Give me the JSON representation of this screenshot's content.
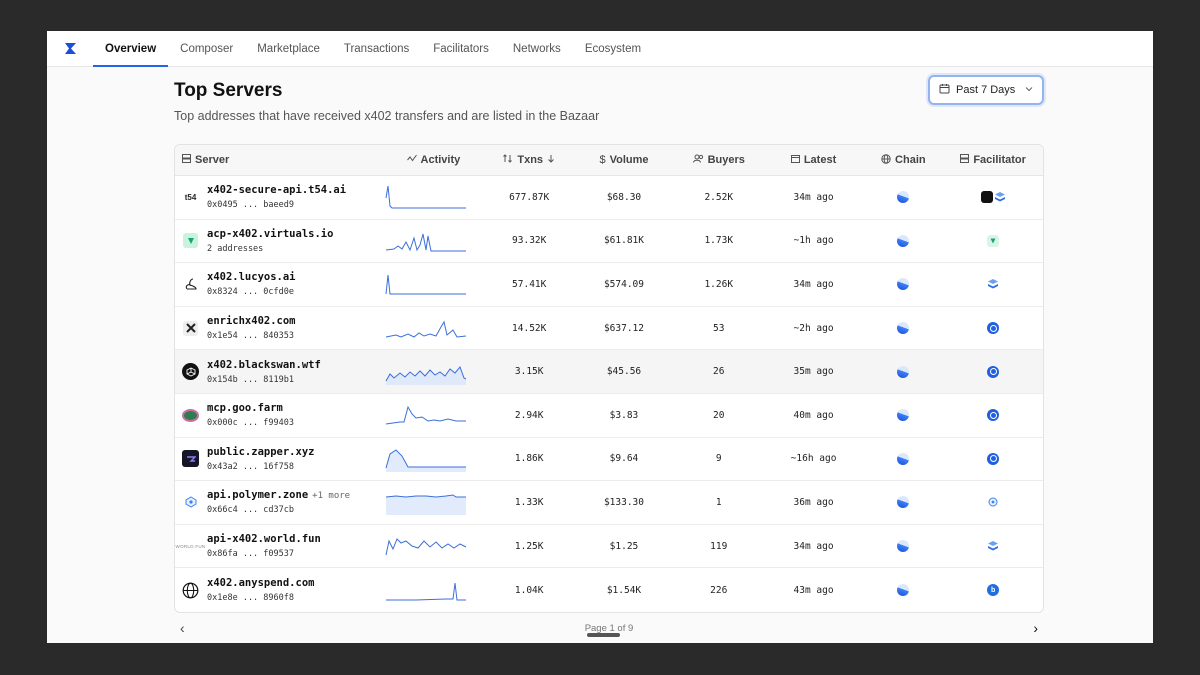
{
  "nav": {
    "tabs": [
      {
        "label": "Overview",
        "active": true
      },
      {
        "label": "Composer"
      },
      {
        "label": "Marketplace"
      },
      {
        "label": "Transactions"
      },
      {
        "label": "Facilitators"
      },
      {
        "label": "Networks"
      },
      {
        "label": "Ecosystem"
      }
    ]
  },
  "header": {
    "title": "Top Servers",
    "subtitle": "Top addresses that have received x402 transfers and are listed in the Bazaar",
    "range_label": "Past 7 Days"
  },
  "table": {
    "columns": [
      "Server",
      "Activity",
      "Txns",
      "Volume",
      "Buyers",
      "Latest",
      "Chain",
      "Facilitator"
    ],
    "rows": [
      {
        "name": "x402-secure-api.t54.ai",
        "addr": "0x0495 ... baeed9",
        "txns": "677.87K",
        "volume": "$68.30",
        "buyers": "2.52K",
        "latest": "34m ago",
        "icon": "t54-logo-icon"
      },
      {
        "name": "acp-x402.virtuals.io",
        "addr": "2 addresses",
        "txns": "93.32K",
        "volume": "$61.81K",
        "buyers": "1.73K",
        "latest": "~1h ago",
        "icon": "virtuals-logo-icon"
      },
      {
        "name": "x402.lucyos.ai",
        "addr": "0x8324 ... 0cfd0e",
        "txns": "57.41K",
        "volume": "$574.09",
        "buyers": "1.26K",
        "latest": "34m ago",
        "icon": "lucyos-logo-icon"
      },
      {
        "name": "enrichx402.com",
        "addr": "0x1e54 ... 840353",
        "txns": "14.52K",
        "volume": "$637.12",
        "buyers": "53",
        "latest": "~2h ago",
        "icon": "enrichx-logo-icon"
      },
      {
        "name": "x402.blackswan.wtf",
        "addr": "0x154b ... 8119b1",
        "txns": "3.15K",
        "volume": "$45.56",
        "buyers": "26",
        "latest": "35m ago",
        "icon": "blackswan-logo-icon"
      },
      {
        "name": "mcp.goo.farm",
        "addr": "0x000c ... f99403",
        "txns": "2.94K",
        "volume": "$3.83",
        "buyers": "20",
        "latest": "40m ago",
        "icon": "goo-farm-logo-icon"
      },
      {
        "name": "public.zapper.xyz",
        "addr": "0x43a2 ... 16f758",
        "txns": "1.86K",
        "volume": "$9.64",
        "buyers": "9",
        "latest": "~16h ago",
        "icon": "zapper-logo-icon"
      },
      {
        "name": "api.polymer.zone",
        "more": "+1 more",
        "addr": "0x66c4 ... cd37cb",
        "txns": "1.33K",
        "volume": "$133.30",
        "buyers": "1",
        "latest": "36m ago",
        "icon": "polymer-logo-icon"
      },
      {
        "name": "api-x402.world.fun",
        "addr": "0x86fa ... f09537",
        "txns": "1.25K",
        "volume": "$1.25",
        "buyers": "119",
        "latest": "34m ago",
        "icon": "world-fun-logo-icon"
      },
      {
        "name": "x402.anyspend.com",
        "addr": "0x1e8e ... 8960f8",
        "txns": "1.04K",
        "volume": "$1.54K",
        "buyers": "226",
        "latest": "43m ago",
        "icon": "globe-icon"
      }
    ]
  },
  "pager": {
    "label": "Page 1 of 9"
  },
  "colors": {
    "accent": "#2563eb",
    "sparkline": "#3b6fd8"
  }
}
